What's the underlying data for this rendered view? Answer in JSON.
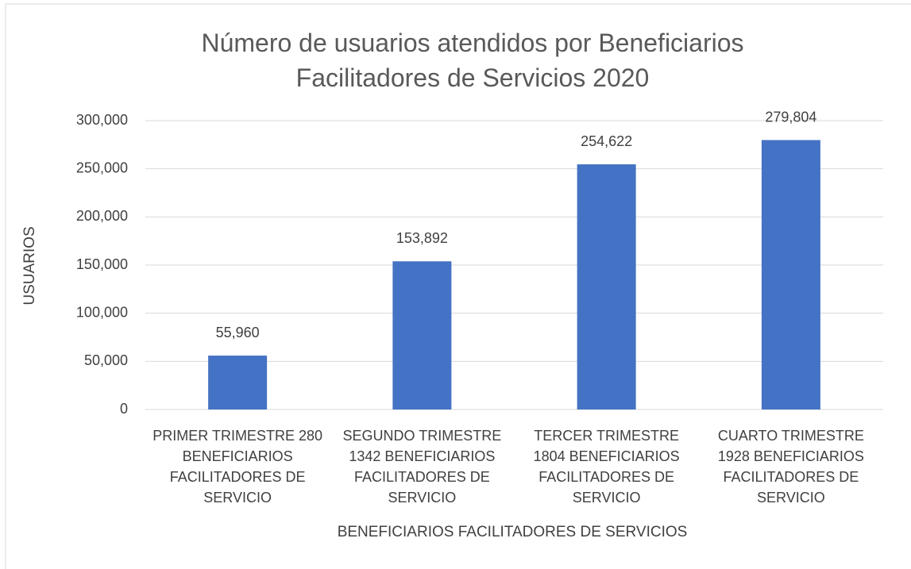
{
  "chart_data": {
    "type": "bar",
    "title": "Número de usuarios atendidos por Beneficiarios Facilitadores de Servicios 2020",
    "categories": [
      "PRIMER TRIMESTRE 280 BENEFICIARIOS FACILITADORES DE SERVICIO",
      "SEGUNDO TRIMESTRE 1342 BENEFICIARIOS FACILITADORES DE SERVICIO",
      "TERCER TRIMESTRE 1804 BENEFICIARIOS FACILITADORES DE SERVICIO",
      "CUARTO TRIMESTRE 1928 BENEFICIARIOS FACILITADORES DE SERVICIO"
    ],
    "values": [
      55960,
      153892,
      254622,
      279804
    ],
    "value_labels": [
      "55,960",
      "153,892",
      "254,622",
      "279,804"
    ],
    "color": "#4472c4",
    "x_label": "BENEFICIARIOS FACILITADORES DE SERVICIOS",
    "y_label": "USUARIOS",
    "ylim": [
      0,
      300000
    ],
    "yticks": [
      0,
      {
        "value": 50000,
        "label": "50,000"
      },
      {
        "value": 100000,
        "label": "100,000"
      },
      {
        "value": 150000,
        "label": "150,000"
      },
      {
        "value": 200000,
        "label": "200,000"
      },
      {
        "value": 250000,
        "label": "250,000"
      },
      {
        "value": 300000,
        "label": "300,000"
      }
    ],
    "grid": true
  }
}
